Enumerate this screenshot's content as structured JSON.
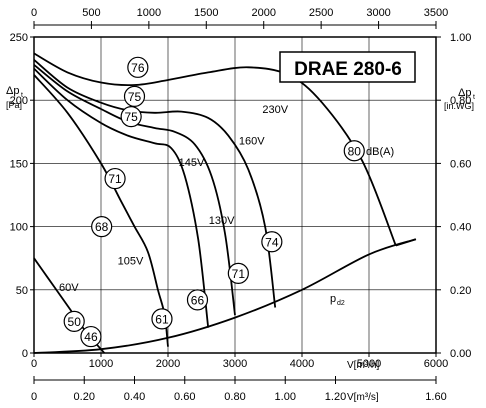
{
  "chart_data": {
    "type": "line",
    "title": "DRAE 280-6",
    "axes": {
      "left": {
        "label_main": "Δp",
        "label_sub": "t",
        "unit": "[Pa]",
        "range": [
          0,
          250
        ],
        "ticks": [
          "0",
          "50",
          "100",
          "150",
          "200",
          "250"
        ]
      },
      "right": {
        "label_main": "Δp",
        "label_sub": "t",
        "unit": "[in.WG]",
        "range": [
          0,
          1
        ],
        "ticks": [
          "0.00",
          "0.20",
          "0.40",
          "0.60",
          "0.80",
          "1.00"
        ]
      },
      "bottom_m3h": {
        "label": "V[m³/h]",
        "range": [
          0,
          6000
        ],
        "ticks": [
          "0",
          "1000",
          "2000",
          "3000",
          "4000",
          "5000",
          "6000"
        ]
      },
      "bottom_m3s": {
        "label": "V[m³/s]",
        "range": [
          0,
          1.6
        ],
        "ticks": [
          "0",
          "0.20",
          "0.40",
          "0.60",
          "0.80",
          "1.00",
          "1.20",
          "1.60"
        ]
      },
      "top_cfm": {
        "range": [
          0,
          3500
        ],
        "ticks": [
          "0",
          "500",
          "1000",
          "1500",
          "2000",
          "2500",
          "3000",
          "3500"
        ]
      }
    },
    "grid": true,
    "x_unit": "m³/h",
    "y_unit": "Pa",
    "series": [
      {
        "name": "230V",
        "x": [
          0,
          500,
          1000,
          1500,
          2000,
          2600,
          3200,
          3800,
          4300,
          4900,
          5400
        ],
        "y": [
          237,
          222,
          214,
          212,
          216,
          222,
          226,
          220,
          198,
          152,
          85
        ]
      },
      {
        "name": "160V",
        "x": [
          0,
          500,
          1000,
          1400,
          1800,
          2200,
          2600,
          2900,
          3200,
          3450,
          3600
        ],
        "y": [
          232,
          210,
          198,
          192,
          190,
          191,
          186,
          172,
          145,
          100,
          36
        ]
      },
      {
        "name": "145V",
        "x": [
          0,
          500,
          1000,
          1400,
          1800,
          2100,
          2400,
          2650,
          2850,
          3000
        ],
        "y": [
          228,
          207,
          193,
          183,
          178,
          175,
          165,
          140,
          95,
          30
        ]
      },
      {
        "name": "130V",
        "x": [
          0,
          500,
          1000,
          1400,
          1800,
          2050,
          2250,
          2450,
          2600
        ],
        "y": [
          225,
          200,
          182,
          172,
          166,
          162,
          140,
          90,
          20
        ]
      },
      {
        "name": "105V",
        "x": [
          0,
          500,
          1000,
          1300,
          1500,
          1700,
          1850,
          1950,
          2000
        ],
        "y": [
          220,
          190,
          150,
          120,
          100,
          80,
          50,
          30,
          5
        ]
      },
      {
        "name": "60V",
        "x": [
          0,
          200,
          400,
          600,
          800,
          1000,
          1050
        ],
        "y": [
          75,
          60,
          45,
          30,
          15,
          3,
          0
        ]
      },
      {
        "name": "p_d2",
        "x": [
          0,
          1000,
          2000,
          3000,
          4000,
          5000,
          5700
        ],
        "y": [
          0,
          3,
          12,
          28,
          50,
          78,
          90
        ]
      }
    ],
    "voltage_labels": [
      "230V",
      "160V",
      "145V",
      "130V",
      "105V",
      "60V"
    ],
    "pd2_label_main": "p",
    "pd2_label_sub": "d2",
    "dba_markers": [
      {
        "value": "76",
        "x": 1550,
        "y": 226
      },
      {
        "value": "75",
        "x": 1500,
        "y": 203
      },
      {
        "value": "75",
        "x": 1450,
        "y": 187
      },
      {
        "value": "80",
        "x": 4780,
        "y": 160
      },
      {
        "value": "71",
        "x": 1210,
        "y": 138
      },
      {
        "value": "68",
        "x": 1010,
        "y": 100
      },
      {
        "value": "74",
        "x": 3550,
        "y": 88
      },
      {
        "value": "71",
        "x": 3050,
        "y": 63
      },
      {
        "value": "66",
        "x": 2440,
        "y": 42
      },
      {
        "value": "61",
        "x": 1910,
        "y": 27
      },
      {
        "value": "50",
        "x": 600,
        "y": 25
      },
      {
        "value": "46",
        "x": 850,
        "y": 13
      }
    ],
    "dba_unit_label": "dB(A)"
  }
}
